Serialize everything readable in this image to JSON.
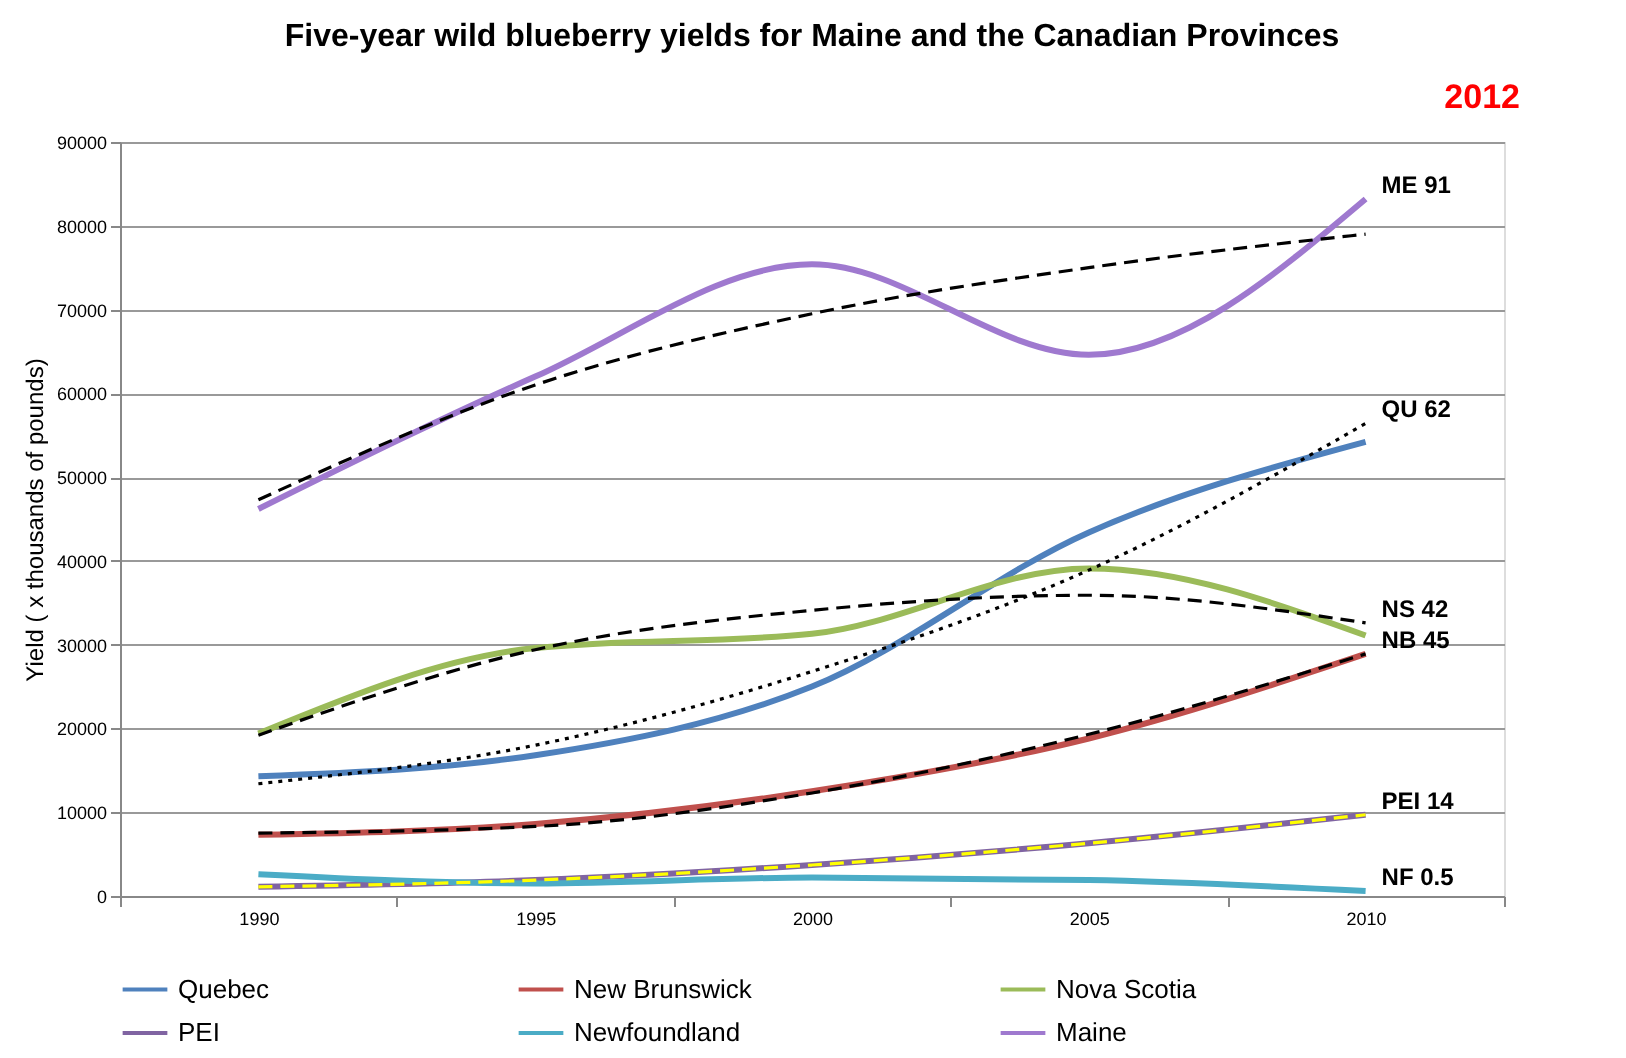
{
  "chart_data": {
    "type": "line",
    "title": "Five-year wild blueberry  yields for Maine and the Canadian Provinces",
    "ylabel": "Yield ( x thousands of pounds)",
    "categories": [
      "1990",
      "1995",
      "2000",
      "2005",
      "2010"
    ],
    "series": [
      {
        "name": "Quebec",
        "color": "#4f81bd",
        "values": [
          14300,
          16800,
          25000,
          43400,
          54200
        ]
      },
      {
        "name": "New Brunswick",
        "color": "#c0504d",
        "values": [
          7300,
          8600,
          12500,
          18800,
          28900
        ]
      },
      {
        "name": "Nova Scotia",
        "color": "#9bbb59",
        "values": [
          19400,
          29600,
          31300,
          39100,
          31100
        ]
      },
      {
        "name": "PEI",
        "color": "#8064a2",
        "values": [
          1100,
          1900,
          3700,
          6300,
          9700
        ]
      },
      {
        "name": "Newfoundland",
        "color": "#4bacc6",
        "values": [
          2600,
          1500,
          2200,
          1900,
          600
        ]
      },
      {
        "name": "Maine",
        "color": "#9f79cf",
        "values": [
          46200,
          62000,
          75400,
          64600,
          83200
        ]
      },
      {
        "type": "line",
        "color": "#000000",
        "line_style": "dashed",
        "values": [
          47300,
          61000,
          69500,
          75000,
          79000
        ]
      },
      {
        "type": "line",
        "color": "#000000",
        "line_style": "dotted",
        "values": [
          13400,
          18000,
          26800,
          38900,
          56400
        ]
      },
      {
        "type": "line",
        "color": "#000000",
        "line_style": "dashed",
        "values": [
          19200,
          29400,
          34100,
          35900,
          32600
        ]
      },
      {
        "type": "line",
        "color": "#000000",
        "line_style": "dashed",
        "values": [
          7500,
          8300,
          12300,
          19300,
          28900
        ]
      },
      {
        "type": "line",
        "color": "#ffff00",
        "line_style": "dashed",
        "values": [
          1100,
          1900,
          3700,
          6300,
          9700
        ]
      }
    ],
    "ylim": [
      0,
      90000
    ],
    "yticks": [
      0,
      10000,
      20000,
      30000,
      40000,
      50000,
      60000,
      70000,
      80000,
      90000
    ],
    "grid": "y",
    "legend": "bottom",
    "annotations": [
      "2012",
      {
        "text": "ME 91",
        "x": "2010",
        "y": 83200
      },
      {
        "text": "QU 62",
        "x": "2010",
        "y": 56400
      },
      {
        "text": "NS 42",
        "x": "2010",
        "y": 32600
      },
      {
        "text": "NB 45",
        "x": "2010",
        "y": 28900
      },
      {
        "text": "PEI 14",
        "x": "2010",
        "y": 9700
      },
      {
        "text": "NF 0.5",
        "x": "2010",
        "y": 600
      }
    ]
  }
}
